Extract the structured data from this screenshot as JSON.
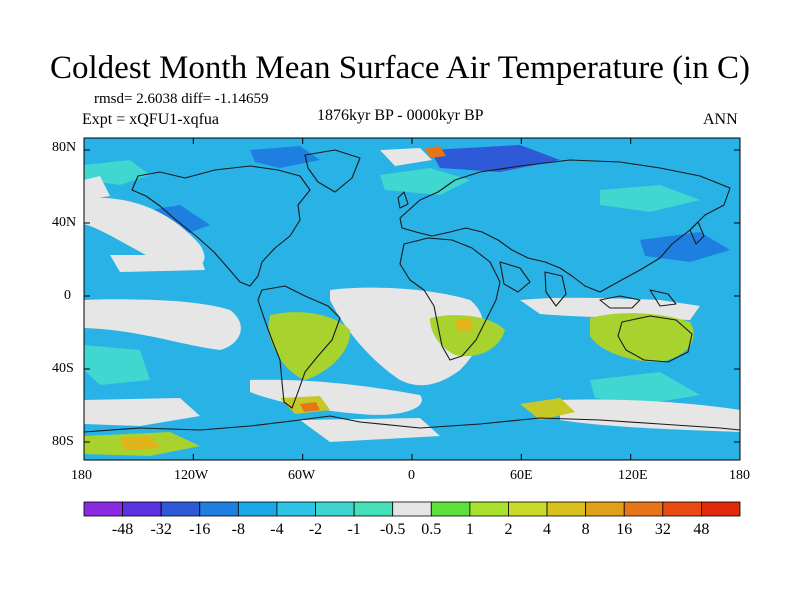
{
  "title": "Coldest Month Mean Surface Air Temperature (in C)",
  "stats": {
    "rmsd_line": "rmsd= 2.6038 diff= -1.14659"
  },
  "experiment": {
    "label": "Expt = xQFU1-xqfua"
  },
  "period": {
    "label": "1876kyr BP - 0000kyr BP"
  },
  "season": {
    "label": "ANN"
  },
  "axes": {
    "y_labels": [
      "80N",
      "40N",
      "0",
      "40S",
      "80S"
    ],
    "x_labels": [
      "180",
      "120W",
      "60W",
      "0",
      "60E",
      "120E",
      "180"
    ]
  },
  "colorbar": {
    "labels": [
      "-48",
      "-32",
      "-16",
      "-8",
      "-4",
      "-2",
      "-1",
      "-0.5",
      "0.5",
      "1",
      "2",
      "4",
      "8",
      "16",
      "32",
      "48"
    ],
    "colors": [
      "#8a2be2",
      "#5a32e0",
      "#2e5ad8",
      "#1f7fe0",
      "#1aa8e6",
      "#2ec4e6",
      "#3fd4d0",
      "#46e0b8",
      "#e6e6e6",
      "#5ee03a",
      "#a8e22e",
      "#c9da2a",
      "#d8c01e",
      "#e0a01a",
      "#e87418",
      "#e84a12",
      "#e02a0a"
    ]
  },
  "map_colors": {
    "background": "#29b2e6",
    "neutral": "#e6e6e6",
    "light": "#3fd7d0",
    "deep": "#1e7fe0",
    "deeper": "#2e5ad8",
    "warm": "#a8d22e",
    "warmer": "#c6c826",
    "hot": "#e0b41a",
    "hotter": "#e87418",
    "coast": "#1a1a1a"
  }
}
